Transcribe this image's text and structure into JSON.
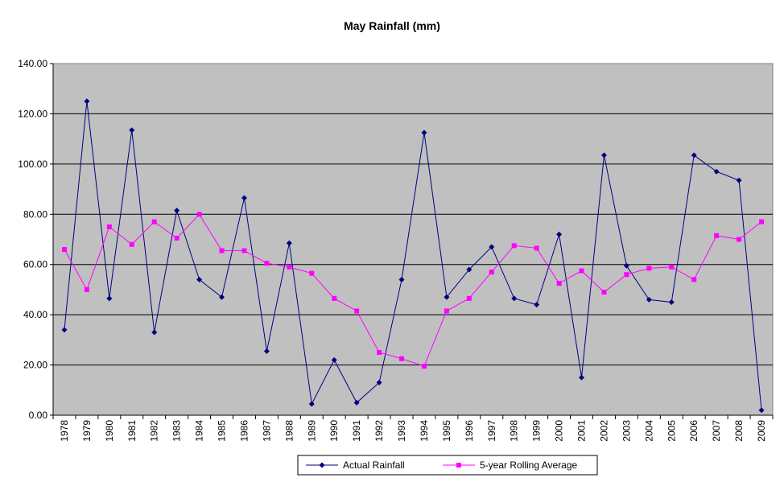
{
  "chart_data": {
    "type": "line",
    "title": "May Rainfall (mm)",
    "xlabel": "",
    "ylabel": "",
    "ylim": [
      0,
      140
    ],
    "y_ticks": [
      "0.00",
      "20.00",
      "40.00",
      "60.00",
      "80.00",
      "100.00",
      "120.00",
      "140.00"
    ],
    "categories": [
      "1978",
      "1979",
      "1980",
      "1981",
      "1982",
      "1983",
      "1984",
      "1985",
      "1986",
      "1987",
      "1988",
      "1989",
      "1990",
      "1991",
      "1992",
      "1993",
      "1994",
      "1995",
      "1996",
      "1997",
      "1998",
      "1999",
      "2000",
      "2001",
      "2002",
      "2003",
      "2004",
      "2005",
      "2006",
      "2007",
      "2008",
      "2009"
    ],
    "grid": true,
    "legend_position": "bottom",
    "plot_background": "#c0c0c0",
    "series": [
      {
        "name": "Actual Rainfall",
        "color": "#000080",
        "marker": "diamond",
        "values": [
          34,
          125,
          46.5,
          113.5,
          33,
          81.5,
          54,
          47,
          86.5,
          25.5,
          68.5,
          4.5,
          22,
          5,
          13,
          54,
          112.5,
          47,
          58,
          67,
          46.5,
          44,
          72,
          15,
          103.5,
          59.5,
          46,
          45,
          103.5,
          97,
          93.5,
          2
        ]
      },
      {
        "name": "5-year Rolling Average",
        "color": "#ff00ff",
        "marker": "square",
        "values": [
          66,
          50,
          75,
          68,
          77,
          70.5,
          80,
          65.5,
          65.5,
          60.5,
          59,
          56.5,
          46.5,
          41.5,
          25,
          22.5,
          19.5,
          41.5,
          46.5,
          57,
          67.5,
          66.5,
          52.5,
          57.5,
          49,
          56,
          58.5,
          59,
          54,
          71.5,
          70,
          77
        ]
      }
    ]
  }
}
